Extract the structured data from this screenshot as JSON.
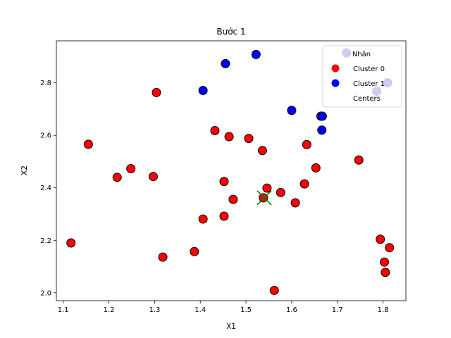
{
  "chart_data": {
    "type": "scatter",
    "title": "Bước 1",
    "xlabel": "X1",
    "ylabel": "X2",
    "xlim": [
      1.085,
      1.85
    ],
    "ylim": [
      1.97,
      2.96
    ],
    "xticks": [
      "1.1",
      "1.2",
      "1.3",
      "1.4",
      "1.5",
      "1.6",
      "1.7",
      "1.8"
    ],
    "yticks": [
      "2.0",
      "2.2",
      "2.4",
      "2.6",
      "2.8"
    ],
    "grid": false,
    "legend": {
      "title": "Nhãn",
      "placement": "top-right",
      "entries": [
        "Cluster 0",
        "Cluster 1",
        "Centers"
      ]
    },
    "series": [
      {
        "name": "Cluster 0",
        "color": "#ff0000",
        "points": [
          [
            1.117,
            2.19
          ],
          [
            1.155,
            2.566
          ],
          [
            1.218,
            2.44
          ],
          [
            1.248,
            2.473
          ],
          [
            1.297,
            2.443
          ],
          [
            1.304,
            2.763
          ],
          [
            1.318,
            2.136
          ],
          [
            1.387,
            2.157
          ],
          [
            1.406,
            2.281
          ],
          [
            1.432,
            2.618
          ],
          [
            1.452,
            2.424
          ],
          [
            1.452,
            2.292
          ],
          [
            1.463,
            2.595
          ],
          [
            1.472,
            2.356
          ],
          [
            1.506,
            2.588
          ],
          [
            1.536,
            2.542
          ],
          [
            1.538,
            2.362
          ],
          [
            1.546,
            2.399
          ],
          [
            1.562,
            2.009
          ],
          [
            1.576,
            2.382
          ],
          [
            1.608,
            2.343
          ],
          [
            1.628,
            2.415
          ],
          [
            1.633,
            2.565
          ],
          [
            1.653,
            2.476
          ],
          [
            1.747,
            2.506
          ],
          [
            1.794,
            2.204
          ],
          [
            1.803,
            2.117
          ],
          [
            1.805,
            2.078
          ],
          [
            1.814,
            2.172
          ]
        ]
      },
      {
        "name": "Cluster 1",
        "color": "#0000ff",
        "points": [
          [
            1.406,
            2.771
          ],
          [
            1.455,
            2.873
          ],
          [
            1.522,
            2.908
          ],
          [
            1.6,
            2.695
          ],
          [
            1.664,
            2.673
          ],
          [
            1.667,
            2.673
          ],
          [
            1.666,
            2.62
          ],
          [
            1.72,
            2.914
          ],
          [
            1.786,
            2.768
          ],
          [
            1.81,
            2.8
          ]
        ]
      },
      {
        "name": "Centers",
        "color": "#008000",
        "marker": "x",
        "points": [
          [
            1.54,
            2.362
          ]
        ]
      }
    ]
  }
}
